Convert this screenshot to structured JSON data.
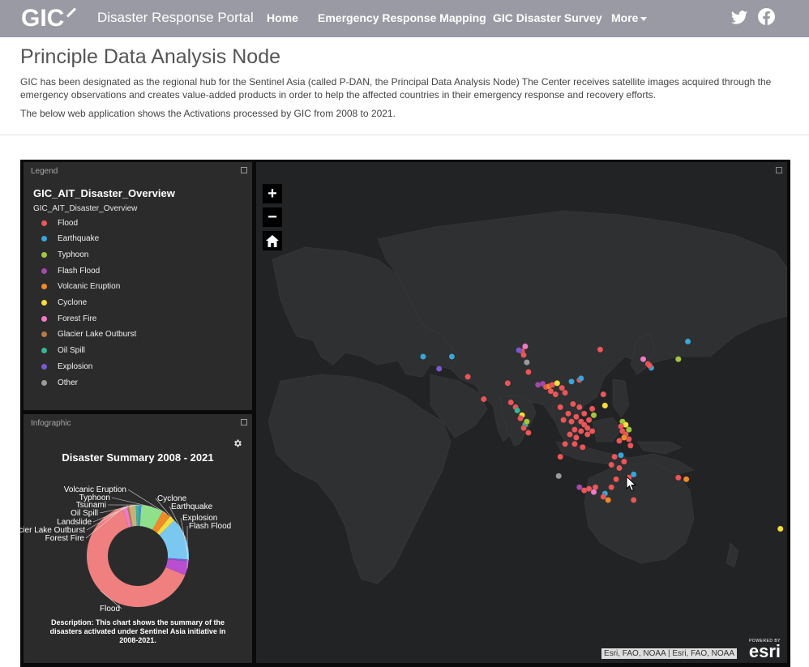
{
  "nav": {
    "logo_text": "GIC",
    "site_title": "Disaster Response Portal",
    "links": [
      "Home",
      "Emergency Response Mapping",
      "GIC Disaster Survey",
      "More"
    ]
  },
  "page": {
    "title": "Principle Data Analysis Node",
    "intro_p1": "GIC has been designated as the regional hub for the Sentinel Asia (called P-DAN, the Principal Data Analysis Node) The Center receives satellite images acquired through the emergency observations and creates value-added products in order to help the affected countries in their emergency response and recovery efforts.",
    "intro_p2": "The below web application shows the Activations processed by GIC from 2008 to 2021."
  },
  "legend": {
    "header": "Legend",
    "title": "GIC_AIT_Disaster_Overview",
    "subtitle": "GIC_AIT_Disaster_Overview",
    "items": [
      {
        "label": "Flood",
        "color": "#e8575a"
      },
      {
        "label": "Earthquake",
        "color": "#3aa5d8"
      },
      {
        "label": "Typhoon",
        "color": "#a5c540"
      },
      {
        "label": "Flash Flood",
        "color": "#a24aa8"
      },
      {
        "label": "Volcanic Eruption",
        "color": "#ee8a2a"
      },
      {
        "label": "Cyclone",
        "color": "#f6dd3e"
      },
      {
        "label": "Forest Fire",
        "color": "#f07ac8"
      },
      {
        "label": "Glacier Lake Outburst",
        "color": "#b57a4a"
      },
      {
        "label": "Oil Spill",
        "color": "#39b59a"
      },
      {
        "label": "Explosion",
        "color": "#7a5ad0"
      },
      {
        "label": "Other",
        "color": "#9b9b9b"
      }
    ]
  },
  "infographic": {
    "header": "Infographic",
    "title": "Disaster Summary 2008 - 2021",
    "description": "Description: This chart shows the summary of the disasters activated under Sentinel Asia initiative in 2008-2021."
  },
  "chart_data": {
    "type": "pie",
    "title": "Disaster Summary 2008 - 2021",
    "slices": [
      {
        "label": "Flood",
        "value": 64.0,
        "color": "#f07f7f"
      },
      {
        "label": "Forest Fire",
        "value": 1.5,
        "color": "#f07ac8"
      },
      {
        "label": "Glacier Lake Outburst",
        "value": 0.6,
        "color": "#b57a4a"
      },
      {
        "label": "Landslide",
        "value": 2.2,
        "color": "#c8b07a"
      },
      {
        "label": "Oil Spill",
        "value": 0.9,
        "color": "#39b59a"
      },
      {
        "label": "Tsunami",
        "value": 0.8,
        "color": "#4b8fd0"
      },
      {
        "label": "Typhoon",
        "value": 7.0,
        "color": "#8ee08a"
      },
      {
        "label": "Volcanic Eruption",
        "value": 2.8,
        "color": "#ee8a2a"
      },
      {
        "label": "Cyclone",
        "value": 1.8,
        "color": "#f6dd3e"
      },
      {
        "label": "Earthquake",
        "value": 13.4,
        "color": "#7ac8f0"
      },
      {
        "label": "Explosion",
        "value": 0.6,
        "color": "#7a5ad0"
      },
      {
        "label": "Flash Flood",
        "value": 4.4,
        "color": "#b84ed0"
      }
    ]
  },
  "map": {
    "zoom_in": "+",
    "zoom_out": "−",
    "attribution": "Esri, FAO, NOAA | Esri, FAO, NOAA",
    "esri_powered": "POWERED BY",
    "esri_word": "esri",
    "points": [
      {
        "type": "Earthquake",
        "lon": 57.0,
        "lat": 36.3
      },
      {
        "type": "Earthquake",
        "lon": 66.0,
        "lat": 36.3
      },
      {
        "type": "Explosion",
        "lon": 62.0,
        "lat": 32.5
      },
      {
        "type": "Flood",
        "lon": 71.0,
        "lat": 30.0
      },
      {
        "type": "Forest Fire",
        "lon": 89.0,
        "lat": 39.5
      },
      {
        "type": "Flood",
        "lon": 88.0,
        "lat": 38.0
      },
      {
        "type": "Flood",
        "lon": 88.5,
        "lat": 36.8
      },
      {
        "type": "Explosion",
        "lon": 87.0,
        "lat": 38.3
      },
      {
        "type": "Other",
        "lon": 89.5,
        "lat": 34.5
      },
      {
        "type": "Flood",
        "lon": 90.0,
        "lat": 31.5
      },
      {
        "type": "Flood",
        "lon": 83.5,
        "lat": 28.0
      },
      {
        "type": "Flood",
        "lon": 76.0,
        "lat": 23.0
      },
      {
        "type": "Flood",
        "lon": 84.5,
        "lat": 22.0
      },
      {
        "type": "Flood",
        "lon": 86.0,
        "lat": 20.5
      },
      {
        "type": "Oil Spill",
        "lon": 86.5,
        "lat": 19.5
      },
      {
        "type": "Cyclone",
        "lon": 88.0,
        "lat": 18.0
      },
      {
        "type": "Flood",
        "lon": 87.5,
        "lat": 17.0
      },
      {
        "type": "Oil Spill",
        "lon": 89.0,
        "lat": 15.0
      },
      {
        "type": "Typhoon",
        "lon": 89.5,
        "lat": 16.0
      },
      {
        "type": "Flood",
        "lon": 88.5,
        "lat": 14.0
      },
      {
        "type": "Flood",
        "lon": 90.0,
        "lat": 12.5
      },
      {
        "type": "Flash Flood",
        "lon": 93.0,
        "lat": 27.5
      },
      {
        "type": "Flash Flood",
        "lon": 94.5,
        "lat": 27.8
      },
      {
        "type": "Flood",
        "lon": 95.5,
        "lat": 26.8
      },
      {
        "type": "Volcanic Eruption",
        "lon": 96.5,
        "lat": 27.0
      },
      {
        "type": "Flood",
        "lon": 97.0,
        "lat": 25.5
      },
      {
        "type": "Flood",
        "lon": 98.5,
        "lat": 24.5
      },
      {
        "type": "Flood",
        "lon": 97.5,
        "lat": 27.5
      },
      {
        "type": "Cyclone",
        "lon": 99.0,
        "lat": 28.0
      },
      {
        "type": "Flood",
        "lon": 100.5,
        "lat": 26.5
      },
      {
        "type": "Flood",
        "lon": 101.5,
        "lat": 25.0
      },
      {
        "type": "Earthquake",
        "lon": 103.5,
        "lat": 28.5
      },
      {
        "type": "Flood",
        "lon": 106.0,
        "lat": 29.0
      },
      {
        "type": "Flood",
        "lon": 104.0,
        "lat": 21.5
      },
      {
        "type": "Flood",
        "lon": 102.5,
        "lat": 18.5
      },
      {
        "type": "Flood",
        "lon": 101.0,
        "lat": 16.5
      },
      {
        "type": "Flood",
        "lon": 103.5,
        "lat": 16.0
      },
      {
        "type": "Flood",
        "lon": 105.0,
        "lat": 17.5
      },
      {
        "type": "Flood",
        "lon": 106.5,
        "lat": 16.0
      },
      {
        "type": "Flood",
        "lon": 107.5,
        "lat": 15.0
      },
      {
        "type": "Flood",
        "lon": 106.5,
        "lat": 13.0
      },
      {
        "type": "Flood",
        "lon": 104.5,
        "lat": 13.5
      },
      {
        "type": "Flood",
        "lon": 108.5,
        "lat": 14.0
      },
      {
        "type": "Flood",
        "lon": 109.0,
        "lat": 16.5
      },
      {
        "type": "Flood",
        "lon": 107.5,
        "lat": 18.5
      },
      {
        "type": "Flood",
        "lon": 106.0,
        "lat": 20.5
      },
      {
        "type": "Flood",
        "lon": 110.0,
        "lat": 20.0
      },
      {
        "type": "Flood",
        "lon": 108.5,
        "lat": 12.0
      },
      {
        "type": "Flood",
        "lon": 110.0,
        "lat": 13.0
      },
      {
        "type": "Flood",
        "lon": 105.0,
        "lat": 11.0
      },
      {
        "type": "Flood",
        "lon": 103.0,
        "lat": 12.0
      },
      {
        "type": "Typhoon",
        "lon": 110.5,
        "lat": 18.0
      },
      {
        "type": "Earthquake",
        "lon": 106.5,
        "lat": 29.5
      },
      {
        "type": "Flood",
        "lon": 100.0,
        "lat": 20.5
      },
      {
        "type": "Flood",
        "lon": 100.0,
        "lat": 5.0
      },
      {
        "type": "Other",
        "lon": 99.5,
        "lat": -1.0
      },
      {
        "type": "Flood",
        "lon": 101.5,
        "lat": 9.0
      },
      {
        "type": "Flood",
        "lon": 104.5,
        "lat": 9.0
      },
      {
        "type": "Flood",
        "lon": 107.0,
        "lat": 8.0
      },
      {
        "type": "Flash Flood",
        "lon": 106.0,
        "lat": -4.5
      },
      {
        "type": "Flood",
        "lon": 107.5,
        "lat": -5.5
      },
      {
        "type": "Flood",
        "lon": 109.0,
        "lat": -5.0
      },
      {
        "type": "Flood",
        "lon": 111.0,
        "lat": -4.5
      },
      {
        "type": "Forest Fire",
        "lon": 110.5,
        "lat": -6.0
      },
      {
        "type": "Earthquake",
        "lon": 114.0,
        "lat": -6.5
      },
      {
        "type": "Flood",
        "lon": 112.5,
        "lat": 38.5
      },
      {
        "type": "Forest Fire",
        "lon": 126.0,
        "lat": 35.5
      },
      {
        "type": "Flood",
        "lon": 127.5,
        "lat": 34.0
      },
      {
        "type": "Earthquake",
        "lon": 128.5,
        "lat": 32.8
      },
      {
        "type": "Flood",
        "lon": 128.0,
        "lat": 33.5
      },
      {
        "type": "Typhoon",
        "lon": 137.0,
        "lat": 35.5
      },
      {
        "type": "Earthquake",
        "lon": 140.0,
        "lat": 41.0
      },
      {
        "type": "Cyclone",
        "lon": 114.0,
        "lat": 21.0
      },
      {
        "type": "Flood",
        "lon": 113.5,
        "lat": 24.5
      },
      {
        "type": "Typhoon",
        "lon": 119.5,
        "lat": 16.0
      },
      {
        "type": "Cyclone",
        "lon": 120.5,
        "lat": 15.0
      },
      {
        "type": "Flood",
        "lon": 119.0,
        "lat": 14.5
      },
      {
        "type": "Typhoon",
        "lon": 121.5,
        "lat": 13.5
      },
      {
        "type": "Flood",
        "lon": 119.5,
        "lat": 13.0
      },
      {
        "type": "Flood",
        "lon": 120.5,
        "lat": 12.0
      },
      {
        "type": "Flood",
        "lon": 121.5,
        "lat": 10.5
      },
      {
        "type": "Volcanic Eruption",
        "lon": 120.0,
        "lat": 11.0
      },
      {
        "type": "Flood",
        "lon": 118.5,
        "lat": 10.0
      },
      {
        "type": "Flood",
        "lon": 122.0,
        "lat": 8.5
      },
      {
        "type": "Earthquake",
        "lon": 119.0,
        "lat": 5.5
      },
      {
        "type": "Flood",
        "lon": 117.0,
        "lat": 5.0
      },
      {
        "type": "Flood",
        "lon": 120.0,
        "lat": 3.5
      },
      {
        "type": "Flood",
        "lon": 118.5,
        "lat": 1.5
      },
      {
        "type": "Flood",
        "lon": 116.0,
        "lat": 2.5
      },
      {
        "type": "Flood",
        "lon": 117.5,
        "lat": -2.0
      },
      {
        "type": "Flood",
        "lon": 116.0,
        "lat": -4.5
      },
      {
        "type": "Earthquake",
        "lon": 123.0,
        "lat": -0.5
      },
      {
        "type": "Flood",
        "lon": 121.5,
        "lat": -1.5
      },
      {
        "type": "Flood",
        "lon": 113.5,
        "lat": -7.5
      },
      {
        "type": "Volcanic Eruption",
        "lon": 115.0,
        "lat": -8.5
      },
      {
        "type": "Flood",
        "lon": 123.0,
        "lat": -8.5
      },
      {
        "type": "Flood",
        "lon": 137.0,
        "lat": -1.5
      },
      {
        "type": "Volcanic Eruption",
        "lon": 139.5,
        "lat": -2.0
      },
      {
        "type": "Cyclone",
        "lon": 169.0,
        "lat": -17.5
      }
    ]
  }
}
